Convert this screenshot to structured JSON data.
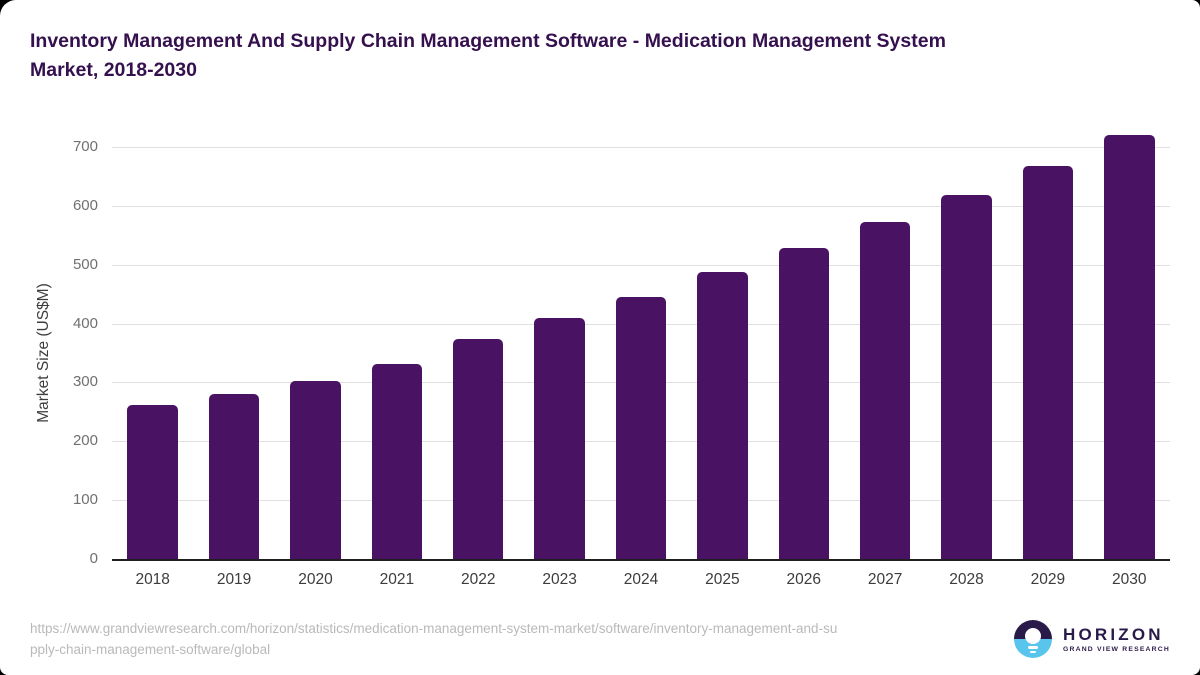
{
  "page": {
    "title_line1": "Inventory Management And Supply Chain Management Software - Medication Management System",
    "title_line2": "Market, 2018-2030"
  },
  "colors": {
    "bar": "#4A1262",
    "title_text": "#35104E",
    "y_tick_text": "#707070",
    "x_tick_text": "#3C3C3C",
    "gridline": "#E0E0E0",
    "baseline": "#1F1F1F",
    "footer_text": "#B9B9B9",
    "logo_dark": "#2A1A4A",
    "logo_blue": "#59C5EC"
  },
  "chart_data": {
    "type": "bar",
    "title": "Inventory Management And Supply Chain Management Software - Medication Management System Market, 2018-2030",
    "categories": [
      "2018",
      "2019",
      "2020",
      "2021",
      "2022",
      "2023",
      "2024",
      "2025",
      "2026",
      "2027",
      "2028",
      "2029",
      "2030"
    ],
    "values": [
      262,
      281,
      303,
      332,
      374,
      409,
      446,
      487,
      528,
      572,
      618,
      667,
      721
    ],
    "xlabel": "",
    "ylabel": "Market Size (US$M)",
    "ylim": [
      0,
      700
    ],
    "yticks": [
      0,
      100,
      200,
      300,
      400,
      500,
      600,
      700
    ],
    "grid": "horizontal-light-gray",
    "legend": "none",
    "bar_color": "#4A1262"
  },
  "footer": {
    "source_url_line1": "https://www.grandviewresearch.com/horizon/statistics/medication-management-system-market/software/inventory-management-and-su",
    "source_url_line2": "pply-chain-management-software/global",
    "logo": {
      "brand": "HORIZON",
      "sub_brand": "GRAND VIEW RESEARCH"
    }
  }
}
